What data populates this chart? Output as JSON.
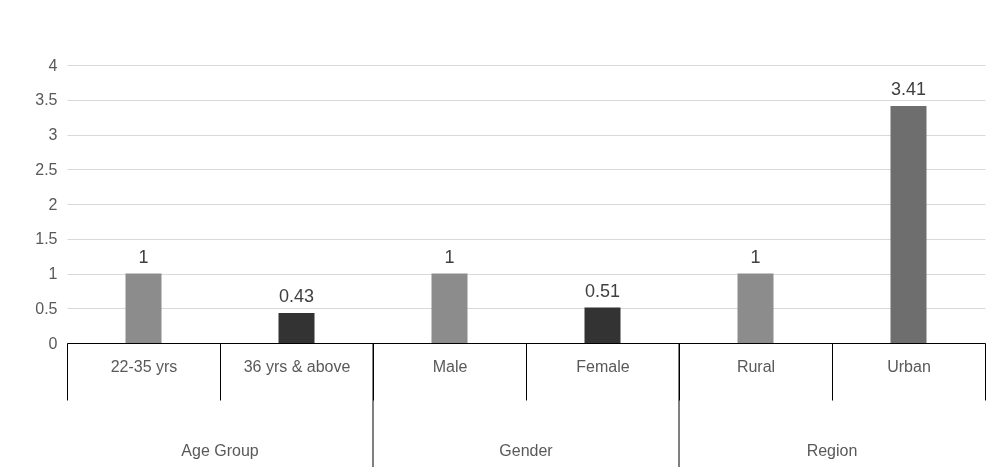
{
  "chart_data": {
    "type": "bar",
    "categories": [
      "22-35 yrs",
      "36 yrs & above",
      "Male",
      "Female",
      "Rural",
      "Urban"
    ],
    "values": [
      1,
      0.43,
      1,
      0.51,
      1,
      3.41
    ],
    "colors": [
      "#8c8c8c",
      "#333333",
      "#8c8c8c",
      "#333333",
      "#8c8c8c",
      "#6e6e6e"
    ],
    "ylim": [
      0,
      4
    ],
    "yticks": [
      0,
      0.5,
      1,
      1.5,
      2,
      2.5,
      3,
      3.5,
      4
    ],
    "grid": "y",
    "data_labels": true,
    "annotations": [
      "Age Group",
      "Gender",
      "Region"
    ]
  }
}
